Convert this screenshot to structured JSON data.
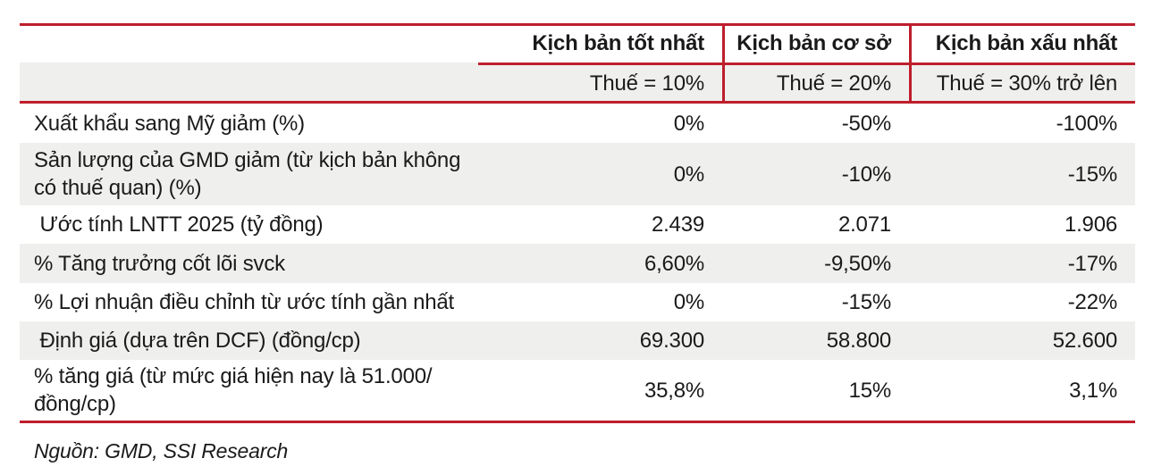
{
  "table": {
    "scenario_headers": [
      {
        "label": "Kịch bản tốt nhất",
        "sub": "Thuế = 10%"
      },
      {
        "label": "Kịch bản cơ sở",
        "sub": "Thuế = 20%"
      },
      {
        "label": "Kịch bản xấu nhất",
        "sub": "Thuế = 30% trở lên"
      }
    ],
    "rows": [
      {
        "label": "Xuất khẩu sang Mỹ giảm (%)",
        "values": [
          "0%",
          "-50%",
          "-100%"
        ]
      },
      {
        "label": "Sản lượng của GMD giảm (từ kịch bản không\ncó thuế quan) (%)",
        "values": [
          "0%",
          "-10%",
          "-15%"
        ]
      },
      {
        "label": " Ước tính LNTT 2025 (tỷ đồng)",
        "values": [
          "2.439",
          "2.071",
          "1.906"
        ]
      },
      {
        "label": "% Tăng trưởng cốt lõi svck",
        "values": [
          "6,60%",
          "-9,50%",
          "-17%"
        ]
      },
      {
        "label": "% Lợi nhuận điều chỉnh từ ước tính gần nhất",
        "values": [
          "0%",
          "-15%",
          "-22%"
        ]
      },
      {
        "label": " Định giá (dựa trên DCF) (đồng/cp)",
        "values": [
          "69.300",
          "58.800",
          "52.600"
        ]
      },
      {
        "label": "% tăng giá (từ mức giá hiện nay là 51.000/\nđồng/cp)",
        "values": [
          "35,8%",
          "15%",
          "3,1%"
        ]
      }
    ],
    "source": "Nguồn: GMD, SSI Research"
  },
  "colors": {
    "accent_red": "#BE1E2D",
    "row_alt_gray": "#EFEFED",
    "text": "#1a1a1a"
  }
}
